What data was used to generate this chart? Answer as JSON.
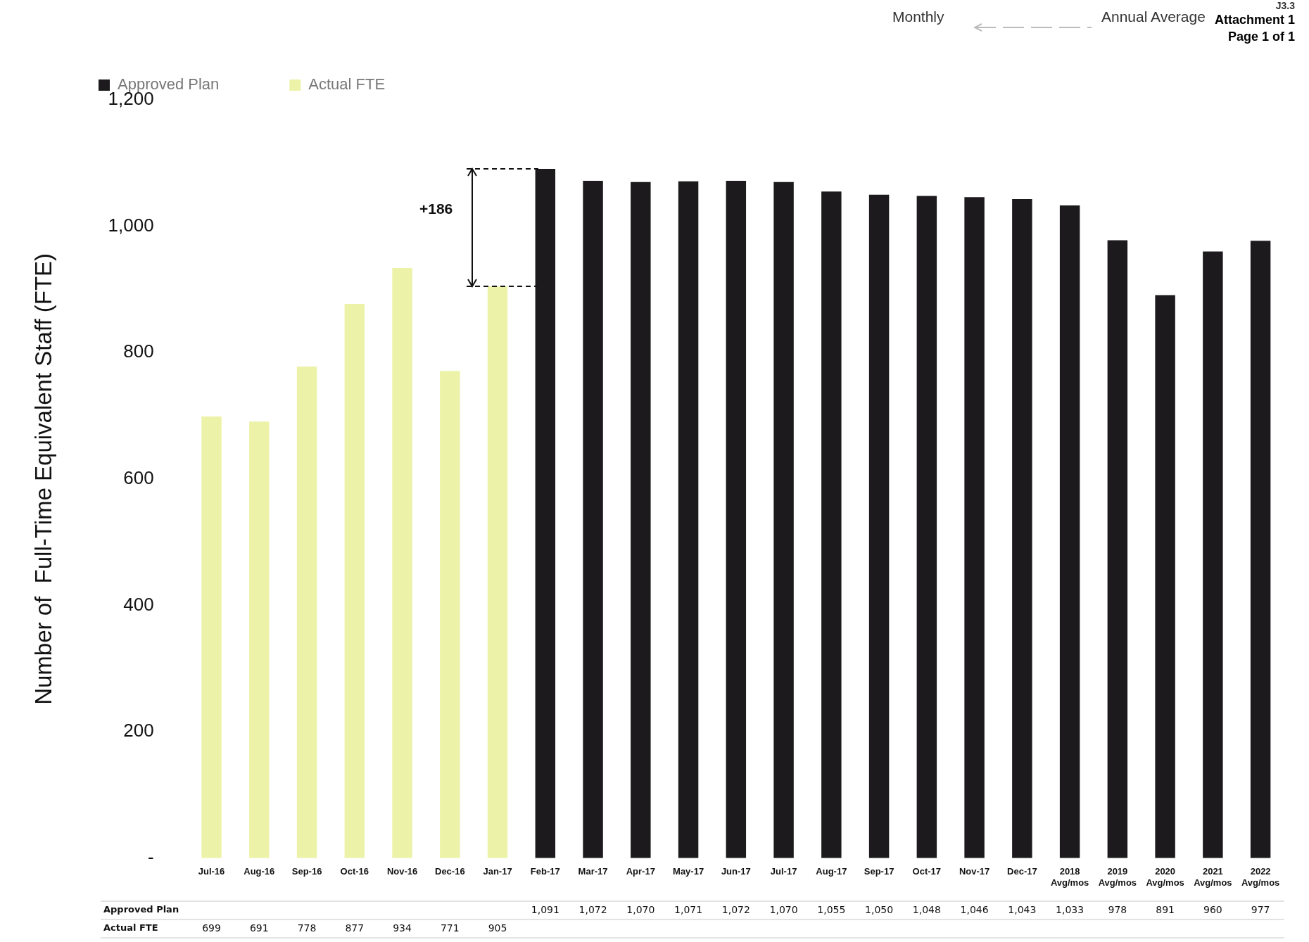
{
  "chart_data": {
    "type": "bar",
    "ylabel": "Number of  Full-Time Equivalent Staff (FTE)",
    "categories": [
      "Jul-16",
      "Aug-16",
      "Sep-16",
      "Oct-16",
      "Nov-16",
      "Dec-16",
      "Jan-17",
      "Feb-17",
      "Mar-17",
      "Apr-17",
      "May-17",
      "Jun-17",
      "Jul-17",
      "Aug-17",
      "Sep-17",
      "Oct-17",
      "Nov-17",
      "Dec-17",
      "2018\nAvg/mos",
      "2019\nAvg/mos",
      "2020\nAvg/mos",
      "2021\nAvg/mos",
      "2022\nAvg/mos"
    ],
    "series": [
      {
        "name": "Approved Plan",
        "color": "#1c1a1c",
        "values": [
          null,
          null,
          null,
          null,
          null,
          null,
          null,
          1091,
          1072,
          1070,
          1071,
          1072,
          1070,
          1055,
          1050,
          1048,
          1046,
          1043,
          1033,
          978,
          891,
          960,
          977
        ],
        "value_labels": [
          null,
          null,
          null,
          null,
          null,
          null,
          null,
          "1,091",
          "1,072",
          "1,070",
          "1,071",
          "1,072",
          "1,070",
          "1,055",
          "1,050",
          "1,048",
          "1,046",
          "1,043",
          "1,033",
          "978",
          "891",
          "960",
          "977"
        ]
      },
      {
        "name": "Actual FTE",
        "color": "#ecf3a8",
        "values": [
          699,
          691,
          778,
          877,
          934,
          771,
          905,
          null,
          null,
          null,
          null,
          null,
          null,
          null,
          null,
          null,
          null,
          null,
          null,
          null,
          null,
          null,
          null
        ],
        "value_labels": [
          "699",
          "691",
          "778",
          "877",
          "934",
          "771",
          "905",
          null,
          null,
          null,
          null,
          null,
          null,
          null,
          null,
          null,
          null,
          null,
          null,
          null,
          null,
          null,
          null
        ]
      }
    ],
    "ylim": [
      0,
      1200
    ],
    "yticks": [
      {
        "value": 0,
        "label": "-"
      },
      200,
      400,
      600,
      800,
      {
        "value": 1000,
        "label": "1,000"
      },
      {
        "value": 1200,
        "label": "1,200"
      }
    ],
    "grid": false,
    "legend": "top left",
    "annotations": [
      "+186",
      "Monthly",
      "Annual Average",
      "J3.3",
      "Attachment 1",
      "Page 1 of 1"
    ]
  }
}
